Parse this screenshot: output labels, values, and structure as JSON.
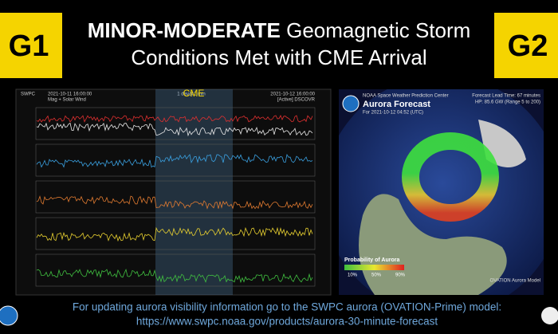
{
  "header": {
    "left_badge": "G1",
    "right_badge": "G2",
    "title_bold": "MINOR-MODERATE",
    "title_rest": "Geomagnetic Storm",
    "title_line2": "Conditions Met with CME Arrival"
  },
  "solar_wind_panel": {
    "source": "SWPC",
    "start": "2021-10-11 16:00:00",
    "subtitle": "Mag + Solar Wind",
    "span": "1 day@1 min",
    "end": "2021-10-12 16:00:00",
    "status": "[Active] DSCOVR",
    "annotation": "CME"
  },
  "aurora_panel": {
    "org": "NOAA Space Weather Prediction Center",
    "title": "Aurora Forecast",
    "valid": "For 2021-10-12 04:52 (UTC)",
    "lead_time": "Forecast Lead Time: 67 minutes",
    "power": "HP: 85.6 GW (Range 5 to 200)",
    "legend_title": "Probability of Aurora",
    "legend_labels": [
      "10%",
      "50%",
      "90%"
    ],
    "model": "OVATION Aurora Model"
  },
  "footer": {
    "line1": "For updating aurora visibility information go to the SWPC aurora (OVATION-Prime) model:",
    "line2": "https://www.swpc.noaa.gov/products/aurora-30-minute-forecast"
  }
}
